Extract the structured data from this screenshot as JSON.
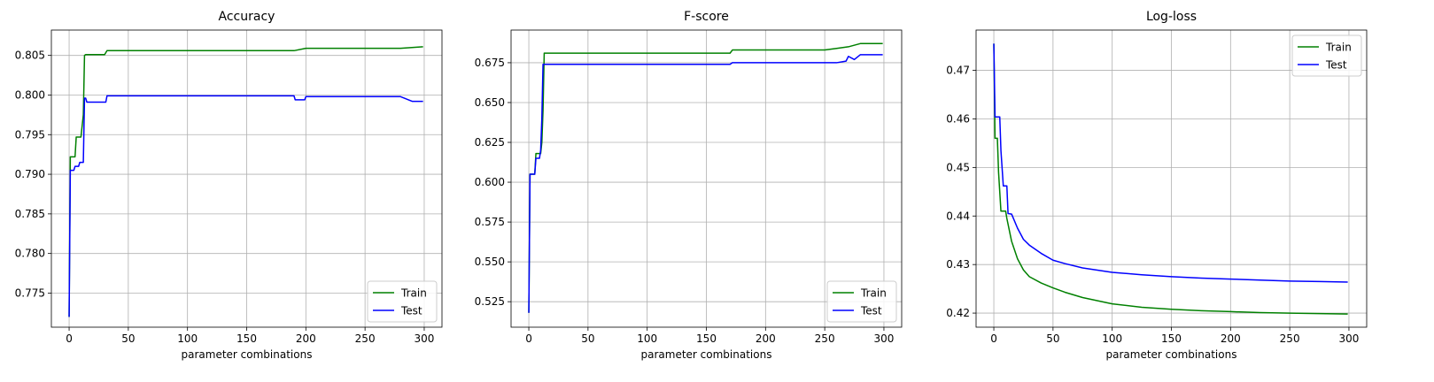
{
  "chart_data": [
    {
      "type": "line",
      "title": "Accuracy",
      "xlabel": "parameter combinations",
      "ylabel": "",
      "xlim": [
        -15,
        315
      ],
      "ylim": [
        0.7707,
        0.8082
      ],
      "xticks": [
        0,
        50,
        100,
        150,
        200,
        250,
        300
      ],
      "yticks": [
        0.775,
        0.78,
        0.785,
        0.79,
        0.795,
        0.8,
        0.805
      ],
      "ytick_labels": [
        "0.775",
        "0.780",
        "0.785",
        "0.790",
        "0.795",
        "0.800",
        "0.805"
      ],
      "grid": true,
      "legend": "lower right",
      "series": [
        {
          "name": "Train",
          "color": "#008000",
          "x": [
            0,
            1,
            5,
            6,
            10,
            12,
            13,
            14,
            30,
            32,
            190,
            200,
            280,
            299
          ],
          "y": [
            0.772,
            0.7922,
            0.7922,
            0.7947,
            0.7947,
            0.7975,
            0.805,
            0.8051,
            0.8051,
            0.8056,
            0.8056,
            0.8059,
            0.8059,
            0.8061
          ]
        },
        {
          "name": "Test",
          "color": "#0000ff",
          "x": [
            0,
            1,
            4,
            5,
            8,
            9,
            12,
            13,
            14,
            15,
            31,
            32,
            190,
            191,
            199,
            200,
            280,
            290,
            299
          ],
          "y": [
            0.772,
            0.7905,
            0.7905,
            0.791,
            0.791,
            0.7915,
            0.7915,
            0.7996,
            0.7996,
            0.7991,
            0.7991,
            0.7999,
            0.7999,
            0.7994,
            0.7994,
            0.7998,
            0.7998,
            0.7992,
            0.7992
          ]
        }
      ]
    },
    {
      "type": "line",
      "title": "F-score",
      "xlabel": "parameter combinations",
      "ylabel": "",
      "xlim": [
        -15,
        315
      ],
      "ylim": [
        0.509,
        0.6955
      ],
      "xticks": [
        0,
        50,
        100,
        150,
        200,
        250,
        300
      ],
      "yticks": [
        0.525,
        0.55,
        0.575,
        0.6,
        0.625,
        0.65,
        0.675
      ],
      "ytick_labels": [
        "0.525",
        "0.550",
        "0.575",
        "0.600",
        "0.625",
        "0.650",
        "0.675"
      ],
      "grid": true,
      "legend": "lower right",
      "series": [
        {
          "name": "Train",
          "color": "#008000",
          "x": [
            0,
            1,
            5,
            6,
            10,
            11,
            12,
            13,
            170,
            172,
            250,
            260,
            270,
            280,
            290,
            299
          ],
          "y": [
            0.518,
            0.605,
            0.605,
            0.618,
            0.618,
            0.625,
            0.645,
            0.681,
            0.681,
            0.683,
            0.683,
            0.684,
            0.685,
            0.687,
            0.687,
            0.687
          ]
        },
        {
          "name": "Test",
          "color": "#0000ff",
          "x": [
            0,
            1,
            5,
            6,
            9,
            10,
            11,
            12,
            13,
            170,
            172,
            260,
            268,
            270,
            275,
            280,
            290,
            299
          ],
          "y": [
            0.518,
            0.605,
            0.605,
            0.615,
            0.615,
            0.62,
            0.64,
            0.674,
            0.674,
            0.674,
            0.675,
            0.675,
            0.676,
            0.679,
            0.677,
            0.68,
            0.68,
            0.68
          ]
        }
      ]
    },
    {
      "type": "line",
      "title": "Log-loss",
      "xlabel": "parameter combinations",
      "ylabel": "",
      "xlim": [
        -15,
        315
      ],
      "ylim": [
        0.4171,
        0.4783
      ],
      "xticks": [
        0,
        50,
        100,
        150,
        200,
        250,
        300
      ],
      "yticks": [
        0.42,
        0.43,
        0.44,
        0.45,
        0.46,
        0.47
      ],
      "ytick_labels": [
        "0.42",
        "0.43",
        "0.44",
        "0.45",
        "0.46",
        "0.47"
      ],
      "grid": true,
      "legend": "upper right",
      "series": [
        {
          "name": "Train",
          "color": "#008000",
          "x": [
            0,
            1,
            3,
            4,
            6,
            7,
            10,
            11,
            15,
            20,
            25,
            30,
            40,
            50,
            60,
            75,
            100,
            125,
            150,
            175,
            200,
            225,
            250,
            275,
            299
          ],
          "y": [
            0.4755,
            0.456,
            0.456,
            0.449,
            0.441,
            0.441,
            0.441,
            0.4395,
            0.4348,
            0.4312,
            0.4289,
            0.4275,
            0.4262,
            0.4252,
            0.4243,
            0.4232,
            0.4219,
            0.4212,
            0.4208,
            0.4205,
            0.4203,
            0.4201,
            0.42,
            0.4199,
            0.4198
          ]
        },
        {
          "name": "Test",
          "color": "#0000ff",
          "x": [
            0,
            1,
            5,
            6,
            8,
            11,
            12,
            15,
            20,
            25,
            30,
            40,
            50,
            60,
            75,
            100,
            125,
            150,
            175,
            200,
            225,
            250,
            275,
            299
          ],
          "y": [
            0.4755,
            0.4604,
            0.4604,
            0.4535,
            0.4462,
            0.4462,
            0.4405,
            0.4404,
            0.4375,
            0.4352,
            0.434,
            0.4323,
            0.4309,
            0.4302,
            0.4293,
            0.4284,
            0.4279,
            0.4275,
            0.4272,
            0.427,
            0.4268,
            0.4266,
            0.4265,
            0.4264
          ]
        }
      ]
    }
  ]
}
